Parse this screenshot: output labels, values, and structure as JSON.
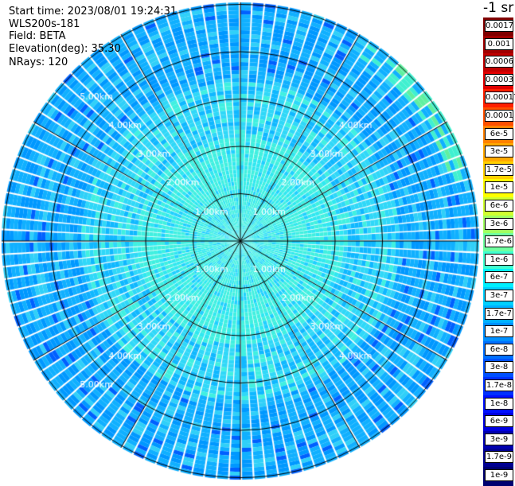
{
  "header": {
    "start_time": "Start time: 2023/08/01 19:24:31",
    "instrument": "WLS200s-181",
    "field": "Field: BETA",
    "elevation": "Elevation(deg): 35.30",
    "nrays": "NRays: 120"
  },
  "colorbar": {
    "units": "-1 sr",
    "labels": [
      "0.0017",
      "0.001",
      "0.0006",
      "0.0003",
      "0.00017",
      "0.0001",
      "6e-5",
      "3e-5",
      "1.7e-5",
      "1e-5",
      "6e-6",
      "3e-6",
      "1.7e-6",
      "1e-6",
      "6e-7",
      "3e-7",
      "1.7e-7",
      "1e-7",
      "6e-8",
      "3e-8",
      "1.7e-8",
      "1e-8",
      "6e-9",
      "3e-9",
      "1.7e-9",
      "1e-9"
    ],
    "colors": [
      "#800000",
      "#a00000",
      "#c00000",
      "#e00000",
      "#ff2000",
      "#ff5000",
      "#ff8000",
      "#ffa800",
      "#ffd000",
      "#ffff00",
      "#d0ff30",
      "#a0ff60",
      "#70ffa0",
      "#40ffd0",
      "#00f0ff",
      "#00d0ff",
      "#00b0ff",
      "#0090ff",
      "#0070ff",
      "#0050ff",
      "#0030ff",
      "#0010ff",
      "#0000e0",
      "#0000b0",
      "#000090",
      "#000070"
    ]
  },
  "chart_data": {
    "type": "heatmap",
    "projection": "polar PPI scan",
    "field": "BETA",
    "elevation_deg": 35.3,
    "n_rays": 120,
    "range_ring_labels": [
      "1.00km",
      "2.00km",
      "3.00km",
      "4.00km",
      "5.00km"
    ],
    "max_range_km": 5.9,
    "azimuth_lines_deg": [
      0,
      30,
      60,
      90,
      120,
      150,
      180,
      210,
      240,
      270,
      300,
      330
    ],
    "dominant_values": "mostly 1e-7 to 6e-7 (cyan/light blue) within 2 km, 3e-8 to 1.7e-7 (blue) beyond 3 km, greenish 1e-6 near the northeast edge",
    "colormap_min": "1e-9",
    "colormap_max": "0.0017"
  }
}
